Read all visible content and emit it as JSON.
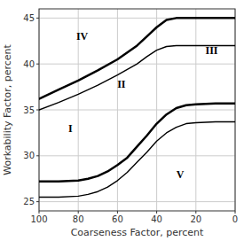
{
  "chart_data": {
    "type": "line",
    "xlabel": "Coarseness Factor, percent",
    "ylabel": "Workability Factor, percent",
    "xlim": [
      100,
      0
    ],
    "ylim": [
      24,
      46
    ],
    "xticks": [
      100,
      80,
      60,
      40,
      20,
      0
    ],
    "yticks": [
      25,
      30,
      35,
      40,
      45
    ],
    "grid": true,
    "series": [
      {
        "color": "#000000",
        "x": [
          100,
          90,
          80,
          70,
          60,
          50,
          45,
          40,
          35,
          30,
          20,
          10,
          0
        ],
        "values": [
          36.2,
          37.2,
          38.2,
          39.3,
          40.5,
          42.0,
          43.0,
          44.0,
          44.8,
          45.0,
          45.0,
          45.0,
          45.0
        ]
      },
      {
        "color": "#000000",
        "x": [
          100,
          90,
          80,
          70,
          60,
          50,
          45,
          40,
          35,
          30,
          20,
          10,
          0
        ],
        "values": [
          35.0,
          35.8,
          36.7,
          37.7,
          38.8,
          40.0,
          40.8,
          41.5,
          41.9,
          42.0,
          42.0,
          42.0,
          42.0
        ]
      },
      {
        "color": "#000000",
        "x": [
          100,
          90,
          80,
          75,
          70,
          65,
          60,
          55,
          50,
          45,
          40,
          35,
          30,
          25,
          20,
          10,
          0
        ],
        "values": [
          27.2,
          27.2,
          27.3,
          27.5,
          27.8,
          28.3,
          29.0,
          29.8,
          31.0,
          32.2,
          33.5,
          34.5,
          35.2,
          35.5,
          35.6,
          35.7,
          35.7
        ]
      },
      {
        "color": "#000000",
        "x": [
          100,
          90,
          80,
          75,
          70,
          65,
          60,
          55,
          50,
          45,
          40,
          35,
          30,
          25,
          20,
          10,
          0
        ],
        "values": [
          25.5,
          25.5,
          25.6,
          25.8,
          26.1,
          26.6,
          27.3,
          28.2,
          29.3,
          30.4,
          31.6,
          32.5,
          33.1,
          33.5,
          33.6,
          33.7,
          33.7
        ]
      }
    ],
    "annotations": [
      {
        "text": "IV",
        "x": 78,
        "y": 43
      },
      {
        "text": "III",
        "x": 12,
        "y": 41.5
      },
      {
        "text": "II",
        "x": 58,
        "y": 37.8
      },
      {
        "text": "I",
        "x": 84,
        "y": 33
      },
      {
        "text": "V",
        "x": 28,
        "y": 28
      }
    ]
  }
}
